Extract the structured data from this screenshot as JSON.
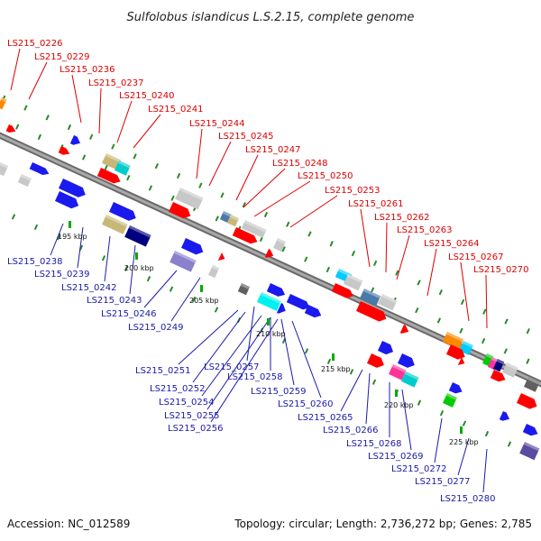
{
  "title": "Sulfolobus islandicus L.S.2.15, complete genome",
  "footer": {
    "accession": "Accession: NC_012589",
    "summary": "Topology: circular; Length: 2,736,272 bp; Genes: 2,785"
  },
  "colors": {
    "forward_label": "#dd0000",
    "reverse_label": "#1a1aaa",
    "backbone": "#8c8c8c",
    "tick": "#2a8a2a"
  },
  "ruler": [
    "195 kbp",
    "200 kbp",
    "205 kbp",
    "210 kbp",
    "215 kbp",
    "220 kbp",
    "225 kbp"
  ],
  "forward_genes": [
    "LS215_0226",
    "LS215_0229",
    "LS215_0236",
    "LS215_0237",
    "LS215_0240",
    "LS215_0241",
    "LS215_0244",
    "LS215_0245",
    "LS215_0247",
    "LS215_0248",
    "LS215_0250",
    "LS215_0253",
    "LS215_0261",
    "LS215_0262",
    "LS215_0263",
    "LS215_0264",
    "LS215_0267",
    "LS215_0270"
  ],
  "reverse_genes": [
    "LS215_0238",
    "LS215_0239",
    "LS215_0242",
    "LS215_0243",
    "LS215_0246",
    "LS215_0249",
    "LS215_0251",
    "LS215_0252",
    "LS215_0254",
    "LS215_0255",
    "LS215_0256",
    "LS215_0257",
    "LS215_0258",
    "LS215_0259",
    "LS215_0260",
    "LS215_0265",
    "LS215_0266",
    "LS215_0268",
    "LS215_0269",
    "LS215_0272",
    "LS215_0277",
    "LS215_0280"
  ]
}
